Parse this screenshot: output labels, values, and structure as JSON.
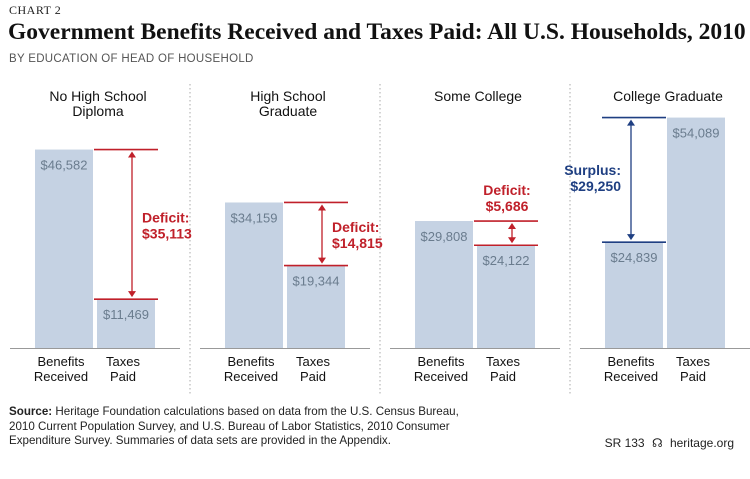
{
  "header": {
    "chart_number": "CHART 2",
    "title": "Government Benefits Received and Taxes Paid: All U.S. Households, 2010",
    "subtitle": "BY EDUCATION OF HEAD OF HOUSEHOLD"
  },
  "footer": {
    "source_label": "Source:",
    "source_text": "Heritage Foundation calculations based on data from the U.S. Census Bureau, 2010 Current Population Survey, and U.S. Bureau of Labor Statistics, 2010 Consumer Expenditure Survey. Summaries of data sets are provided in the Appendix.",
    "report_id": "SR 133",
    "site": "heritage.org"
  },
  "colors": {
    "bar": "#c5d2e3",
    "bar_text": "#6a7c8e",
    "deficit": "#c0202a",
    "surplus": "#1f3f82",
    "divider": "#aaaaaa",
    "baseline": "#777777"
  },
  "chart_data": {
    "type": "bar",
    "ylim": [
      0,
      62000
    ],
    "grid": false,
    "groups": [
      {
        "name": "No High School Diploma",
        "name_lines": [
          "No High School",
          "Diploma"
        ],
        "benefits": 46582,
        "benefits_label": "$46,582",
        "taxes": 11469,
        "taxes_label": "$11,469",
        "diff_type": "deficit",
        "diff_word": "Deficit:",
        "diff_value": "$35,113"
      },
      {
        "name": "High School Graduate",
        "name_lines": [
          "High School",
          "Graduate"
        ],
        "benefits": 34159,
        "benefits_label": "$34,159",
        "taxes": 19344,
        "taxes_label": "$19,344",
        "diff_type": "deficit",
        "diff_word": "Deficit:",
        "diff_value": "$14,815"
      },
      {
        "name": "Some College",
        "name_lines": [
          "Some College"
        ],
        "benefits": 29808,
        "benefits_label": "$29,808",
        "taxes": 24122,
        "taxes_label": "$24,122",
        "diff_type": "deficit",
        "diff_word": "Deficit:",
        "diff_value": "$5,686"
      },
      {
        "name": "College Graduate",
        "name_lines": [
          "College Graduate"
        ],
        "benefits": 24839,
        "benefits_label": "$24,839",
        "taxes": 54089,
        "taxes_label": "$54,089",
        "diff_type": "surplus",
        "diff_word": "Surplus:",
        "diff_value": "$29,250"
      }
    ],
    "category_lines": {
      "benefits": [
        "Benefits",
        "Received"
      ],
      "taxes": [
        "Taxes",
        "Paid"
      ]
    }
  }
}
